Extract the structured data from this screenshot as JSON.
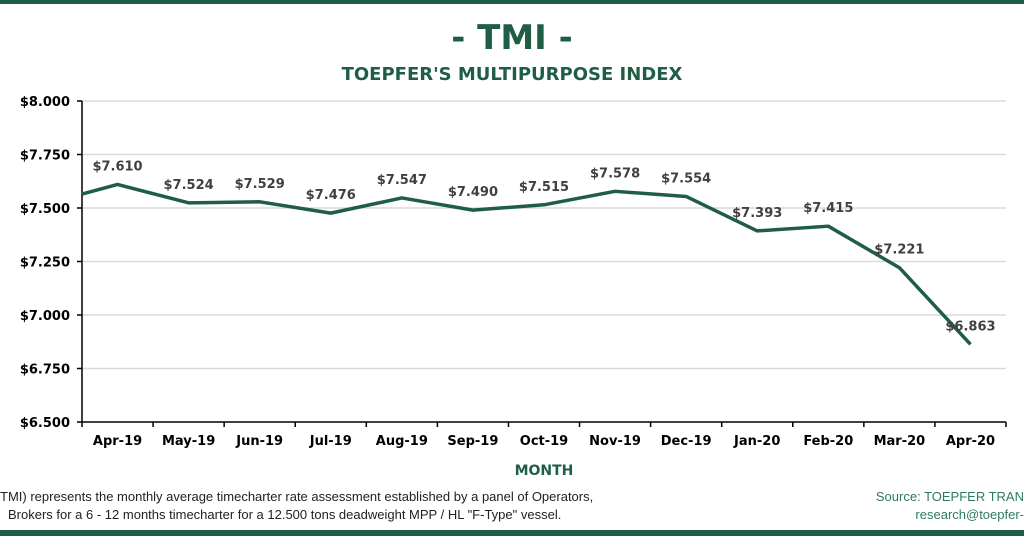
{
  "colors": {
    "brand": "#1f5e45",
    "line": "#1f5e45",
    "grid": "#d9d9d9"
  },
  "chart_data": {
    "type": "line",
    "title": "- TMI -",
    "subtitle": "TOEPFER'S MULTIPURPOSE INDEX",
    "xlabel": "MONTH",
    "ylabel": "",
    "categories": [
      "Apr-19",
      "May-19",
      "Jun-19",
      "Jul-19",
      "Aug-19",
      "Sep-19",
      "Oct-19",
      "Nov-19",
      "Dec-19",
      "Jan-20",
      "Feb-20",
      "Mar-20",
      "Apr-20"
    ],
    "values": [
      7610,
      7524,
      7529,
      7476,
      7547,
      7490,
      7515,
      7578,
      7554,
      7393,
      7415,
      7221,
      6863
    ],
    "data_labels": [
      "$7.610",
      "$7.524",
      "$7.529",
      "$7.476",
      "$7.547",
      "$7.490",
      "$7.515",
      "$7.578",
      "$7.554",
      "$7.393",
      "$7.415",
      "$7.221",
      "$6.863"
    ],
    "clipped_preceding_value": 7520,
    "ylim": [
      6500,
      8000
    ],
    "yticks": [
      6500,
      6750,
      7000,
      7250,
      7500,
      7750,
      8000
    ],
    "ytick_labels": [
      "$6.500",
      "$6.750",
      "$7.000",
      "$7.250",
      "$7.500",
      "$7.750",
      "$8.000"
    ],
    "grid": true,
    "legend": "none"
  },
  "footer": {
    "note_line1": "TMI) represents the monthly average timecharter rate assessment established by a panel of Operators,",
    "note_line2": "Brokers for a 6 - 12 months timecharter for a 12.500 tons deadweight MPP / HL \"F-Type\" vessel.",
    "source_line1": "Source: TOEPFER TRAN",
    "source_line2": "research@toepfer-"
  }
}
